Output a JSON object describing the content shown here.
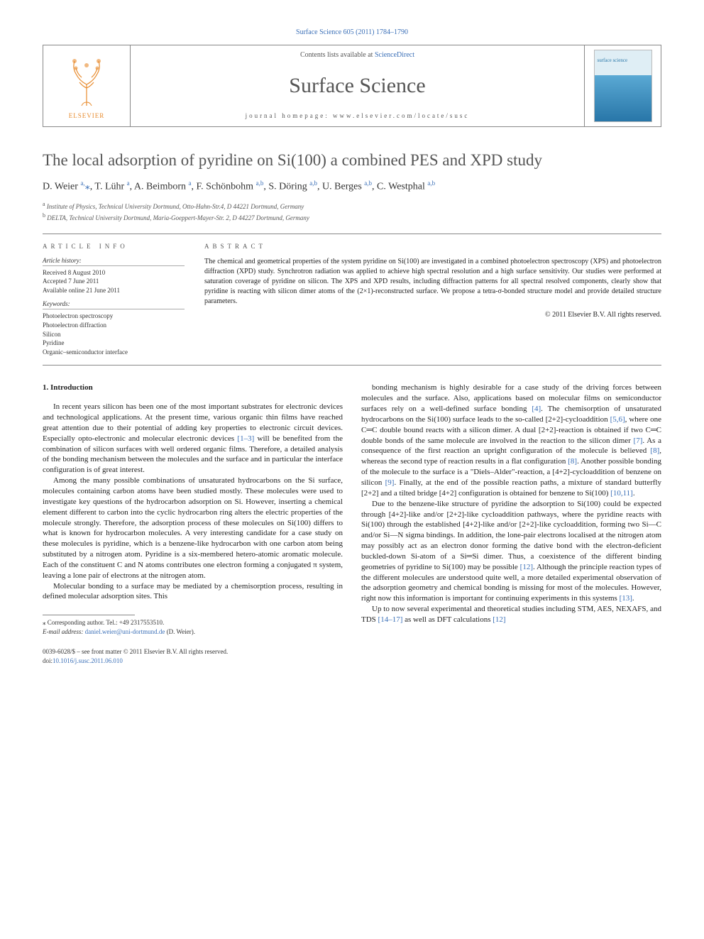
{
  "top_citation": "Surface Science 605 (2011) 1784–1790",
  "header": {
    "contents_prefix": "Contents lists available at ",
    "contents_link": "ScienceDirect",
    "journal": "Surface Science",
    "homepage_prefix": "journal homepage: ",
    "homepage": "www.elsevier.com/locate/susc",
    "publisher": "ELSEVIER",
    "cover_label": "surface science"
  },
  "title": "The local adsorption of pyridine on Si(100) a combined PES and XPD study",
  "authors_html": "D. Weier <sup>a,</sup><span class=\"star\">⁎</span>, T. Lühr <sup>a</sup>, A. Beimborn <sup>a</sup>, F. Schönbohm <sup>a,b</sup>, S. Döring <sup>a,b</sup>, U. Berges <sup>a,b</sup>, C. Westphal <sup>a,b</sup>",
  "affiliations": [
    {
      "label": "a",
      "text": "Institute of Physics, Technical University Dortmund, Otto-Hahn-Str.4, D 44221 Dortmund, Germany"
    },
    {
      "label": "b",
      "text": "DELTA, Technical University Dortmund, Maria-Goeppert-Mayer-Str. 2, D 44227 Dortmund, Germany"
    }
  ],
  "article_info": {
    "heading": "ARTICLE INFO",
    "history_label": "Article history:",
    "history": [
      "Received 8 August 2010",
      "Accepted 7 June 2011",
      "Available online 21 June 2011"
    ],
    "keywords_label": "Keywords:",
    "keywords": [
      "Photoelectron spectroscopy",
      "Photoelectron diffraction",
      "Silicon",
      "Pyridine",
      "Organic–semiconductor interface"
    ]
  },
  "abstract": {
    "heading": "ABSTRACT",
    "text": "The chemical and geometrical properties of the system pyridine on Si(100) are investigated in a combined photoelectron spectroscopy (XPS) and photoelectron diffraction (XPD) study. Synchrotron radiation was applied to achieve high spectral resolution and a high surface sensitivity. Our studies were performed at saturation coverage of pyridine on silicon. The XPS and XPD results, including diffraction patterns for all spectral resolved components, clearly show that pyridine is reacting with silicon dimer atoms of the (2×1)-reconstructed surface. We propose a tetra-σ-bonded structure model and provide detailed structure parameters.",
    "copyright": "© 2011 Elsevier B.V. All rights reserved."
  },
  "body": {
    "section_heading": "1. Introduction",
    "left": [
      "In recent years silicon has been one of the most important substrates for electronic devices and technological applications. At the present time, various organic thin films have reached great attention due to their potential of adding key properties to electronic circuit devices. Especially opto-electronic and molecular electronic devices <span class=\"cite\">[1–3]</span> will be benefited from the combination of silicon surfaces with well ordered organic films. Therefore, a detailed analysis of the bonding mechanism between the molecules and the surface and in particular the interface configuration is of great interest.",
      "Among the many possible combinations of unsaturated hydrocarbons on the Si surface, molecules containing carbon atoms have been studied mostly. These molecules were used to investigate key questions of the hydrocarbon adsorption on Si. However, inserting a chemical element different to carbon into the cyclic hydrocarbon ring alters the electric properties of the molecule strongly. Therefore, the adsorption process of these molecules on Si(100) differs to what is known for hydrocarbon molecules. A very interesting candidate for a case study on these molecules is pyridine, which is a benzene-like hydrocarbon with one carbon atom being substituted by a nitrogen atom. Pyridine is a six-membered hetero-atomic aromatic molecule. Each of the constituent C and N atoms contributes one electron forming a conjugated π system, leaving a lone pair of electrons at the nitrogen atom.",
      "Molecular bonding to a surface may be mediated by a chemisorption process, resulting in defined molecular adsorption sites. This"
    ],
    "right": [
      "bonding mechanism is highly desirable for a case study of the driving forces between molecules and the surface. Also, applications based on molecular films on semiconductor surfaces rely on a well-defined surface bonding <span class=\"cite\">[4]</span>. The chemisorption of unsaturated hydrocarbons on the Si(100) surface leads to the so-called [2+2]-cycloaddition <span class=\"cite\">[5,6]</span>, where one C═C double bound reacts with a silicon dimer. A dual [2+2]-reaction is obtained if two C═C double bonds of the same molecule are involved in the reaction to the silicon dimer <span class=\"cite\">[7]</span>. As a consequence of the first reaction an upright configuration of the molecule is believed <span class=\"cite\">[8]</span>, whereas the second type of reaction results in a flat configuration <span class=\"cite\">[8]</span>. Another possible bonding of the molecule to the surface is a \"Diels–Alder\"-reaction, a [4+2]-cycloaddition of benzene on silicon <span class=\"cite\">[9]</span>. Finally, at the end of the possible reaction paths, a mixture of standard butterfly [2+2] and a tilted bridge [4+2] configuration is obtained for benzene to Si(100) <span class=\"cite\">[10,11]</span>.",
      "Due to the benzene-like structure of pyridine the adsorption to Si(100) could be expected through [4+2]-like and/or [2+2]-like cycloaddition pathways, where the pyridine reacts with Si(100) through the established [4+2]-like and/or [2+2]-like cycloaddition, forming two Si―C and/or Si―N sigma bindings. In addition, the lone-pair electrons localised at the nitrogen atom may possibly act as an electron donor forming the dative bond with the electron-deficient buckled-down Si-atom of a Si═Si dimer. Thus, a coexistence of the different binding geometries of pyridine to Si(100) may be possible <span class=\"cite\">[12]</span>. Although the principle reaction types of the different molecules are understood quite well, a more detailed experimental observation of the adsorption geometry and chemical bonding is missing for most of the molecules. However, right now this information is important for continuing experiments in this systems <span class=\"cite\">[13]</span>.",
      "Up to now several experimental and theoretical studies including STM, AES, NEXAFS, and TDS <span class=\"cite\">[14–17]</span> as well as DFT calculations <span class=\"cite\">[12]</span>"
    ]
  },
  "footnotes": {
    "corresponding": "⁎ Corresponding author. Tel.: +49 2317553510.",
    "email_label": "E-mail address:",
    "email": "daniel.weier@uni-dortmund.de",
    "email_who": "(D. Weier)."
  },
  "bottom": {
    "front_matter": "0039-6028/$ – see front matter © 2011 Elsevier B.V. All rights reserved.",
    "doi_label": "doi:",
    "doi": "10.1016/j.susc.2011.06.010"
  },
  "colors": {
    "link": "#3a6fb7",
    "text": "#222222",
    "border": "#888888",
    "elsevier_orange": "#e88b2d"
  }
}
